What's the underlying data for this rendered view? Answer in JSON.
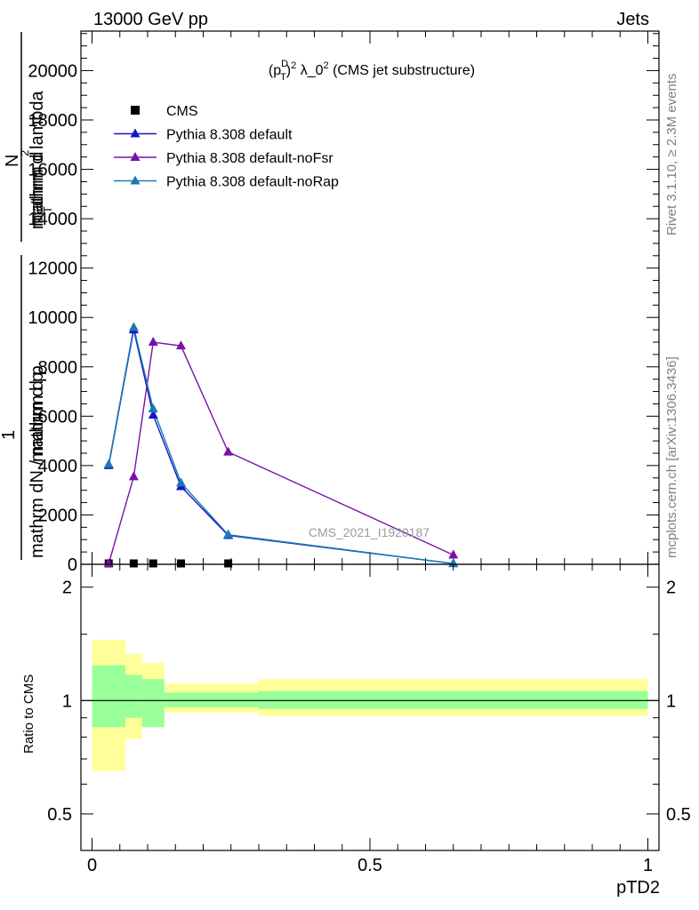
{
  "header": {
    "left": "13000 GeV pp",
    "right": "Jets"
  },
  "side_labels": {
    "rivet": "Rivet 3.1.10, ≥ 2.3M events",
    "mcplots": "mcplots.cern.ch [arXiv:1306.3436]"
  },
  "watermark": "CMS_2021_I1920187",
  "chart_data": [
    {
      "type": "line",
      "title_parts": {
        "a": "(p",
        "sup1": "D",
        "sub1": "T",
        "b": ")",
        "sup2": "2",
        "c": " λ_0",
        "sup3": "2",
        "d": " (CMS jet substructure)"
      },
      "ylabel": {
        "numerator": "mathrm d",
        "numerator_sup": "2",
        "numerator_end": "N",
        "denominator": "mathrm d p",
        "denominator_sub": "T",
        "denominator_end": " mathrm d lambda",
        "prefix_one": "1",
        "prefix_den": "mathrm dN / mathrm d p",
        "prefix_den_sub": "T",
        "overlay": "mathrm d lambda"
      },
      "xlim": [
        -0.02,
        1.02
      ],
      "ylim": [
        0,
        21600
      ],
      "yticks": [
        {
          "v": 0,
          "label": "0"
        },
        {
          "v": 2000,
          "label": "2000"
        },
        {
          "v": 4000,
          "label": "4000"
        },
        {
          "v": 6000,
          "label": "6000"
        },
        {
          "v": 8000,
          "label": "8000"
        },
        {
          "v": 10000,
          "label": "10000"
        },
        {
          "v": 12000,
          "label": "12000"
        },
        {
          "v": 14000,
          "label": "14000"
        },
        {
          "v": 16000,
          "label": "16000"
        },
        {
          "v": 18000,
          "label": "18000"
        },
        {
          "v": 20000,
          "label": "20000"
        }
      ],
      "series": [
        {
          "name": "CMS",
          "color": "#000000",
          "marker": "square",
          "x": [
            0.03,
            0.075,
            0.11,
            0.16,
            0.245
          ],
          "y": [
            0.4,
            0.9,
            0.6,
            0.3,
            0.05
          ]
        },
        {
          "name": "Pythia 8.308 default",
          "color": "#1515c8",
          "marker": "triangle",
          "x": [
            0.03,
            0.075,
            0.11,
            0.16,
            0.245,
            0.65
          ],
          "y": [
            4000,
            9500,
            6050,
            3150,
            1170,
            30
          ]
        },
        {
          "name": "Pythia 8.308 default-noFsr",
          "color": "#7a10a8",
          "marker": "triangle",
          "x": [
            0.03,
            0.075,
            0.11,
            0.16,
            0.245,
            0.65
          ],
          "y": [
            30,
            3550,
            9000,
            8850,
            4550,
            380
          ]
        },
        {
          "name": "Pythia 8.308 default-noRap",
          "color": "#1a7ab0",
          "marker": "triangle",
          "x": [
            0.03,
            0.075,
            0.11,
            0.16,
            0.245,
            0.65
          ],
          "y": [
            4050,
            9600,
            6300,
            3300,
            1200,
            30
          ]
        }
      ]
    },
    {
      "type": "area",
      "ylabel": "Ratio to CMS",
      "xlabel": "pTD2",
      "xlim": [
        -0.02,
        1.02
      ],
      "ylim": [
        0.4,
        2.3
      ],
      "log_y": true,
      "xticks": [
        {
          "v": 0,
          "label": "0"
        },
        {
          "v": 0.5,
          "label": "0.5"
        },
        {
          "v": 1,
          "label": "1"
        }
      ],
      "yticks": [
        {
          "v": 0.5,
          "label": "0.5"
        },
        {
          "v": 1,
          "label": "1"
        },
        {
          "v": 2,
          "label": "2"
        }
      ],
      "bins": [
        {
          "lo": 0.0,
          "hi": 0.06,
          "g_lo": 0.85,
          "g_hi": 1.24,
          "y_lo": 0.65,
          "y_hi": 1.45
        },
        {
          "lo": 0.06,
          "hi": 0.09,
          "g_lo": 0.9,
          "g_hi": 1.17,
          "y_lo": 0.79,
          "y_hi": 1.33
        },
        {
          "lo": 0.09,
          "hi": 0.13,
          "g_lo": 0.85,
          "g_hi": 1.14,
          "y_lo": 0.85,
          "y_hi": 1.26
        },
        {
          "lo": 0.13,
          "hi": 0.3,
          "g_lo": 0.96,
          "g_hi": 1.05,
          "y_lo": 0.93,
          "y_hi": 1.11
        },
        {
          "lo": 0.3,
          "hi": 1.0,
          "g_lo": 0.95,
          "g_hi": 1.06,
          "y_lo": 0.91,
          "y_hi": 1.14
        }
      ]
    }
  ]
}
